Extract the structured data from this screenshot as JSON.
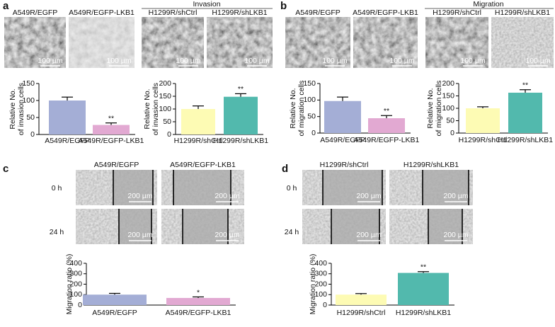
{
  "panels": [
    {
      "letter": "a",
      "heading": "Invasion",
      "images": [
        {
          "caption": "A549R/EGFP",
          "scale": "100 µm"
        },
        {
          "caption": "A549R/EGFP-LKB1",
          "scale": "100 µm"
        },
        {
          "caption": "H1299R/shCtrl",
          "scale": "100 µm"
        },
        {
          "caption": "H1299R/shLKB1",
          "scale": "100 µm"
        }
      ]
    },
    {
      "letter": "b",
      "heading": "Migration",
      "images": [
        {
          "caption": "A549R/EGFP",
          "scale": "100 µm"
        },
        {
          "caption": "A549R/EGFP-LKB1",
          "scale": "100 µm"
        },
        {
          "caption": "H1299R/shCtrl",
          "scale": "100 µm"
        },
        {
          "caption": "H1299R/shLKB1",
          "scale": "100 µm"
        }
      ]
    },
    {
      "letter": "c",
      "columns": [
        "A549R/EGFP",
        "A549R/EGFP-LKB1"
      ],
      "rows": [
        "0 h",
        "24 h"
      ],
      "scale": "200 µm"
    },
    {
      "letter": "d",
      "columns": [
        "H1299R/shCtrl",
        "H1299R/shLKB1"
      ],
      "rows": [
        "0 h",
        "24 h"
      ],
      "scale": "200 µm"
    }
  ],
  "chart_data": [
    {
      "type": "bar",
      "ylabel": [
        "Relative No.",
        "of invasion cells"
      ],
      "categories": [
        "A549R/EGFP",
        "A549R/EGFP-LKB1"
      ],
      "values": [
        100,
        28
      ],
      "errors": [
        10,
        6
      ],
      "significance": [
        null,
        "**"
      ],
      "colors": [
        "#a4aed6",
        "#e2a9d2"
      ],
      "ylim": [
        0,
        150
      ],
      "yticks": [
        0,
        50,
        100,
        150
      ]
    },
    {
      "type": "bar",
      "ylabel": [
        "Relative No.",
        "of invasion cells"
      ],
      "categories": [
        "H1299R/shCtrl",
        "H1299R/shLKB1"
      ],
      "values": [
        100,
        148
      ],
      "errors": [
        12,
        12
      ],
      "significance": [
        null,
        "**"
      ],
      "colors": [
        "#fdfbb4",
        "#52b9ad"
      ],
      "ylim": [
        0,
        200
      ],
      "yticks": [
        0,
        50,
        100,
        150,
        200
      ]
    },
    {
      "type": "bar",
      "ylabel": [
        "Relative No.",
        "of migration cells"
      ],
      "categories": [
        "A549R/EGFP",
        "A549R/EGFP-LKB1"
      ],
      "values": [
        97,
        45
      ],
      "errors": [
        12,
        8
      ],
      "significance": [
        null,
        "**"
      ],
      "colors": [
        "#a4aed6",
        "#e2a9d2"
      ],
      "ylim": [
        0,
        150
      ],
      "yticks": [
        0,
        50,
        100,
        150
      ]
    },
    {
      "type": "bar",
      "ylabel": [
        "Relative No.",
        "of migration cells"
      ],
      "categories": [
        "H1299R/shCtrl",
        "H1299R/shLKB1"
      ],
      "values": [
        100,
        163
      ],
      "errors": [
        6,
        12
      ],
      "significance": [
        null,
        "**"
      ],
      "colors": [
        "#fdfbb4",
        "#52b9ad"
      ],
      "ylim": [
        0,
        200
      ],
      "yticks": [
        0,
        50,
        100,
        150,
        200
      ]
    },
    {
      "type": "bar",
      "ylabel": [
        "Migration ratio (%)"
      ],
      "categories": [
        "A549R/EGFP",
        "A549R/EGFP-LKB1"
      ],
      "values": [
        100,
        68
      ],
      "errors": [
        12,
        10
      ],
      "significance": [
        null,
        "*"
      ],
      "colors": [
        "#a4aed6",
        "#e2a9d2"
      ],
      "ylim": [
        0,
        400
      ],
      "yticks": [
        0,
        100,
        200,
        300,
        400
      ]
    },
    {
      "type": "bar",
      "ylabel": [
        "Migration ratio (%)"
      ],
      "categories": [
        "H1299R/shCtrl",
        "H1299R/shLKB1"
      ],
      "values": [
        100,
        308
      ],
      "errors": [
        10,
        12
      ],
      "significance": [
        null,
        "**"
      ],
      "colors": [
        "#fdfbb4",
        "#52b9ad"
      ],
      "ylim": [
        0,
        400
      ],
      "yticks": [
        0,
        100,
        200,
        300,
        400
      ]
    }
  ]
}
